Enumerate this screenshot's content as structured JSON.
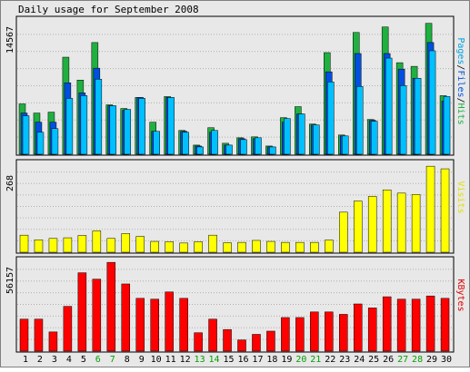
{
  "chart_data": [
    {
      "type": "bar",
      "title": "Daily usage for September 2008",
      "ylabel_parts": [
        {
          "text": "Pages",
          "color": "#00a0e0"
        },
        {
          "text": "/",
          "color": "#000000"
        },
        {
          "text": "Files",
          "color": "#0050e0"
        },
        {
          "text": "/",
          "color": "#000000"
        },
        {
          "text": "Hits",
          "color": "#20b040"
        }
      ],
      "ymax_label": "14567",
      "ymax": 14567,
      "categories": [
        "1",
        "2",
        "3",
        "4",
        "5",
        "6",
        "7",
        "8",
        "9",
        "10",
        "11",
        "12",
        "13",
        "14",
        "15",
        "16",
        "17",
        "18",
        "19",
        "20",
        "21",
        "22",
        "23",
        "24",
        "25",
        "26",
        "27",
        "28",
        "29",
        "30"
      ],
      "weekend_days": [
        "6",
        "7",
        "13",
        "14",
        "20",
        "21",
        "27",
        "28"
      ],
      "series": [
        {
          "name": "Hits",
          "color": "#20b040",
          "values": [
            5500,
            4500,
            4600,
            10600,
            8100,
            12200,
            5400,
            5000,
            6200,
            3500,
            6300,
            2600,
            1000,
            2900,
            1200,
            1800,
            1900,
            900,
            4000,
            5200,
            3300,
            11100,
            2100,
            13300,
            3800,
            13900,
            10000,
            9600,
            14300,
            6400
          ]
        },
        {
          "name": "Files",
          "color": "#0050e0",
          "values": [
            4500,
            3500,
            3500,
            7800,
            6700,
            9400,
            5300,
            4800,
            6200,
            2500,
            6200,
            2500,
            900,
            2400,
            1000,
            1700,
            1700,
            800,
            3500,
            4400,
            3200,
            9000,
            2000,
            11000,
            3700,
            11000,
            9300,
            8300,
            12200,
            5800
          ]
        },
        {
          "name": "Pages",
          "color": "#00c0ff",
          "values": [
            4200,
            2400,
            2800,
            6100,
            6400,
            8200,
            5300,
            4900,
            6100,
            2500,
            6200,
            2400,
            800,
            2600,
            1000,
            1600,
            1800,
            800,
            3900,
            4400,
            3200,
            7900,
            2000,
            7400,
            3600,
            10500,
            7500,
            8300,
            11300,
            6300
          ]
        }
      ]
    },
    {
      "type": "bar",
      "ylabel": "Visits",
      "ylabel_color": "#e0e000",
      "ymax_label": "268",
      "ymax": 268,
      "categories": [
        "1",
        "2",
        "3",
        "4",
        "5",
        "6",
        "7",
        "8",
        "9",
        "10",
        "11",
        "12",
        "13",
        "14",
        "15",
        "16",
        "17",
        "18",
        "19",
        "20",
        "21",
        "22",
        "23",
        "24",
        "25",
        "26",
        "27",
        "28",
        "29",
        "30"
      ],
      "series": [
        {
          "name": "Visits",
          "color": "#ffff00",
          "values": [
            52,
            38,
            42,
            44,
            51,
            65,
            42,
            57,
            48,
            33,
            32,
            28,
            32,
            52,
            29,
            30,
            36,
            33,
            30,
            30,
            30,
            37,
            122,
            156,
            170,
            190,
            180,
            176,
            262,
            254
          ]
        }
      ]
    },
    {
      "type": "bar",
      "ylabel": "KBytes",
      "ylabel_color": "#e00000",
      "ymax_label": "56157",
      "ymax": 56157,
      "categories": [
        "1",
        "2",
        "3",
        "4",
        "5",
        "6",
        "7",
        "8",
        "9",
        "10",
        "11",
        "12",
        "13",
        "14",
        "15",
        "16",
        "17",
        "18",
        "19",
        "20",
        "21",
        "22",
        "23",
        "24",
        "25",
        "26",
        "27",
        "28",
        "29",
        "30"
      ],
      "series": [
        {
          "name": "KBytes",
          "color": "#ff0000",
          "values": [
            20000,
            20000,
            12000,
            28000,
            49000,
            45000,
            55500,
            42000,
            33000,
            32500,
            37000,
            33000,
            11500,
            20000,
            13500,
            7000,
            10500,
            12500,
            21000,
            21000,
            24500,
            24500,
            23000,
            29500,
            27000,
            34000,
            32500,
            32500,
            34500,
            33000
          ]
        }
      ]
    }
  ]
}
